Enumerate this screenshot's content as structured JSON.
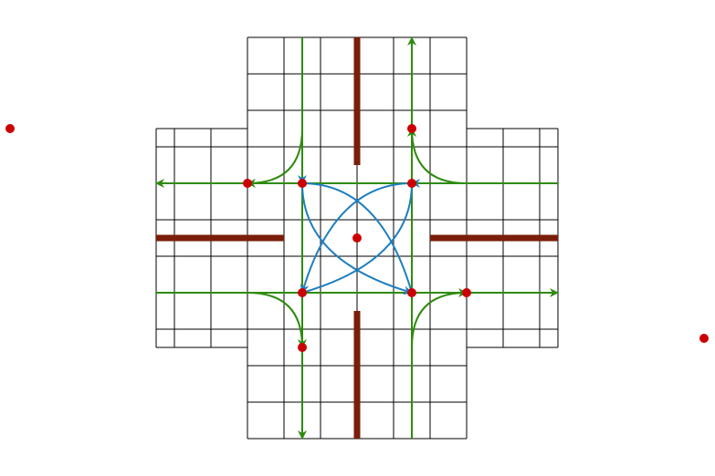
{
  "diagram": {
    "colors": {
      "grid": "#000000",
      "wall": "#7a1e0a",
      "lane": "#2e8b0f",
      "turn": "#1f7fbf",
      "waypoint": "#cc0000"
    },
    "elements": {
      "wall_count": 4,
      "straight_lane_count": 4,
      "right_turn_count": 4,
      "diagonal_crossing_count": 4,
      "waypoint_count": 12
    },
    "icons": {
      "arrowhead": "arrow-icon",
      "waypoint": "red-dot-icon"
    }
  }
}
